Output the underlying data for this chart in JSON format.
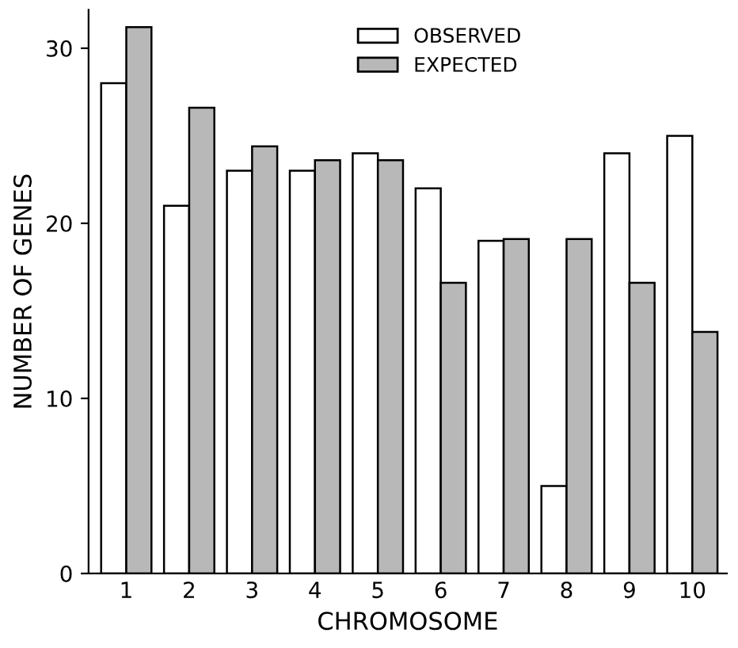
{
  "chart_data": {
    "type": "bar",
    "xlabel": "CHROMOSOME",
    "ylabel": "NUMBER OF GENES",
    "categories": [
      "1",
      "2",
      "3",
      "4",
      "5",
      "6",
      "7",
      "8",
      "9",
      "10"
    ],
    "series": [
      {
        "name": "OBSERVED",
        "color": "#ffffff",
        "values": [
          28,
          21,
          23,
          23,
          24,
          22,
          19,
          5,
          24,
          25
        ]
      },
      {
        "name": "EXPECTED",
        "color": "#b8b8b8",
        "values": [
          31.2,
          26.6,
          24.4,
          23.6,
          23.6,
          16.6,
          19.1,
          19.1,
          16.6,
          13.8
        ]
      }
    ],
    "ylim": [
      0,
      32.2
    ],
    "yticks": [
      0,
      10,
      20,
      30
    ],
    "grid": false,
    "legend": "top"
  }
}
